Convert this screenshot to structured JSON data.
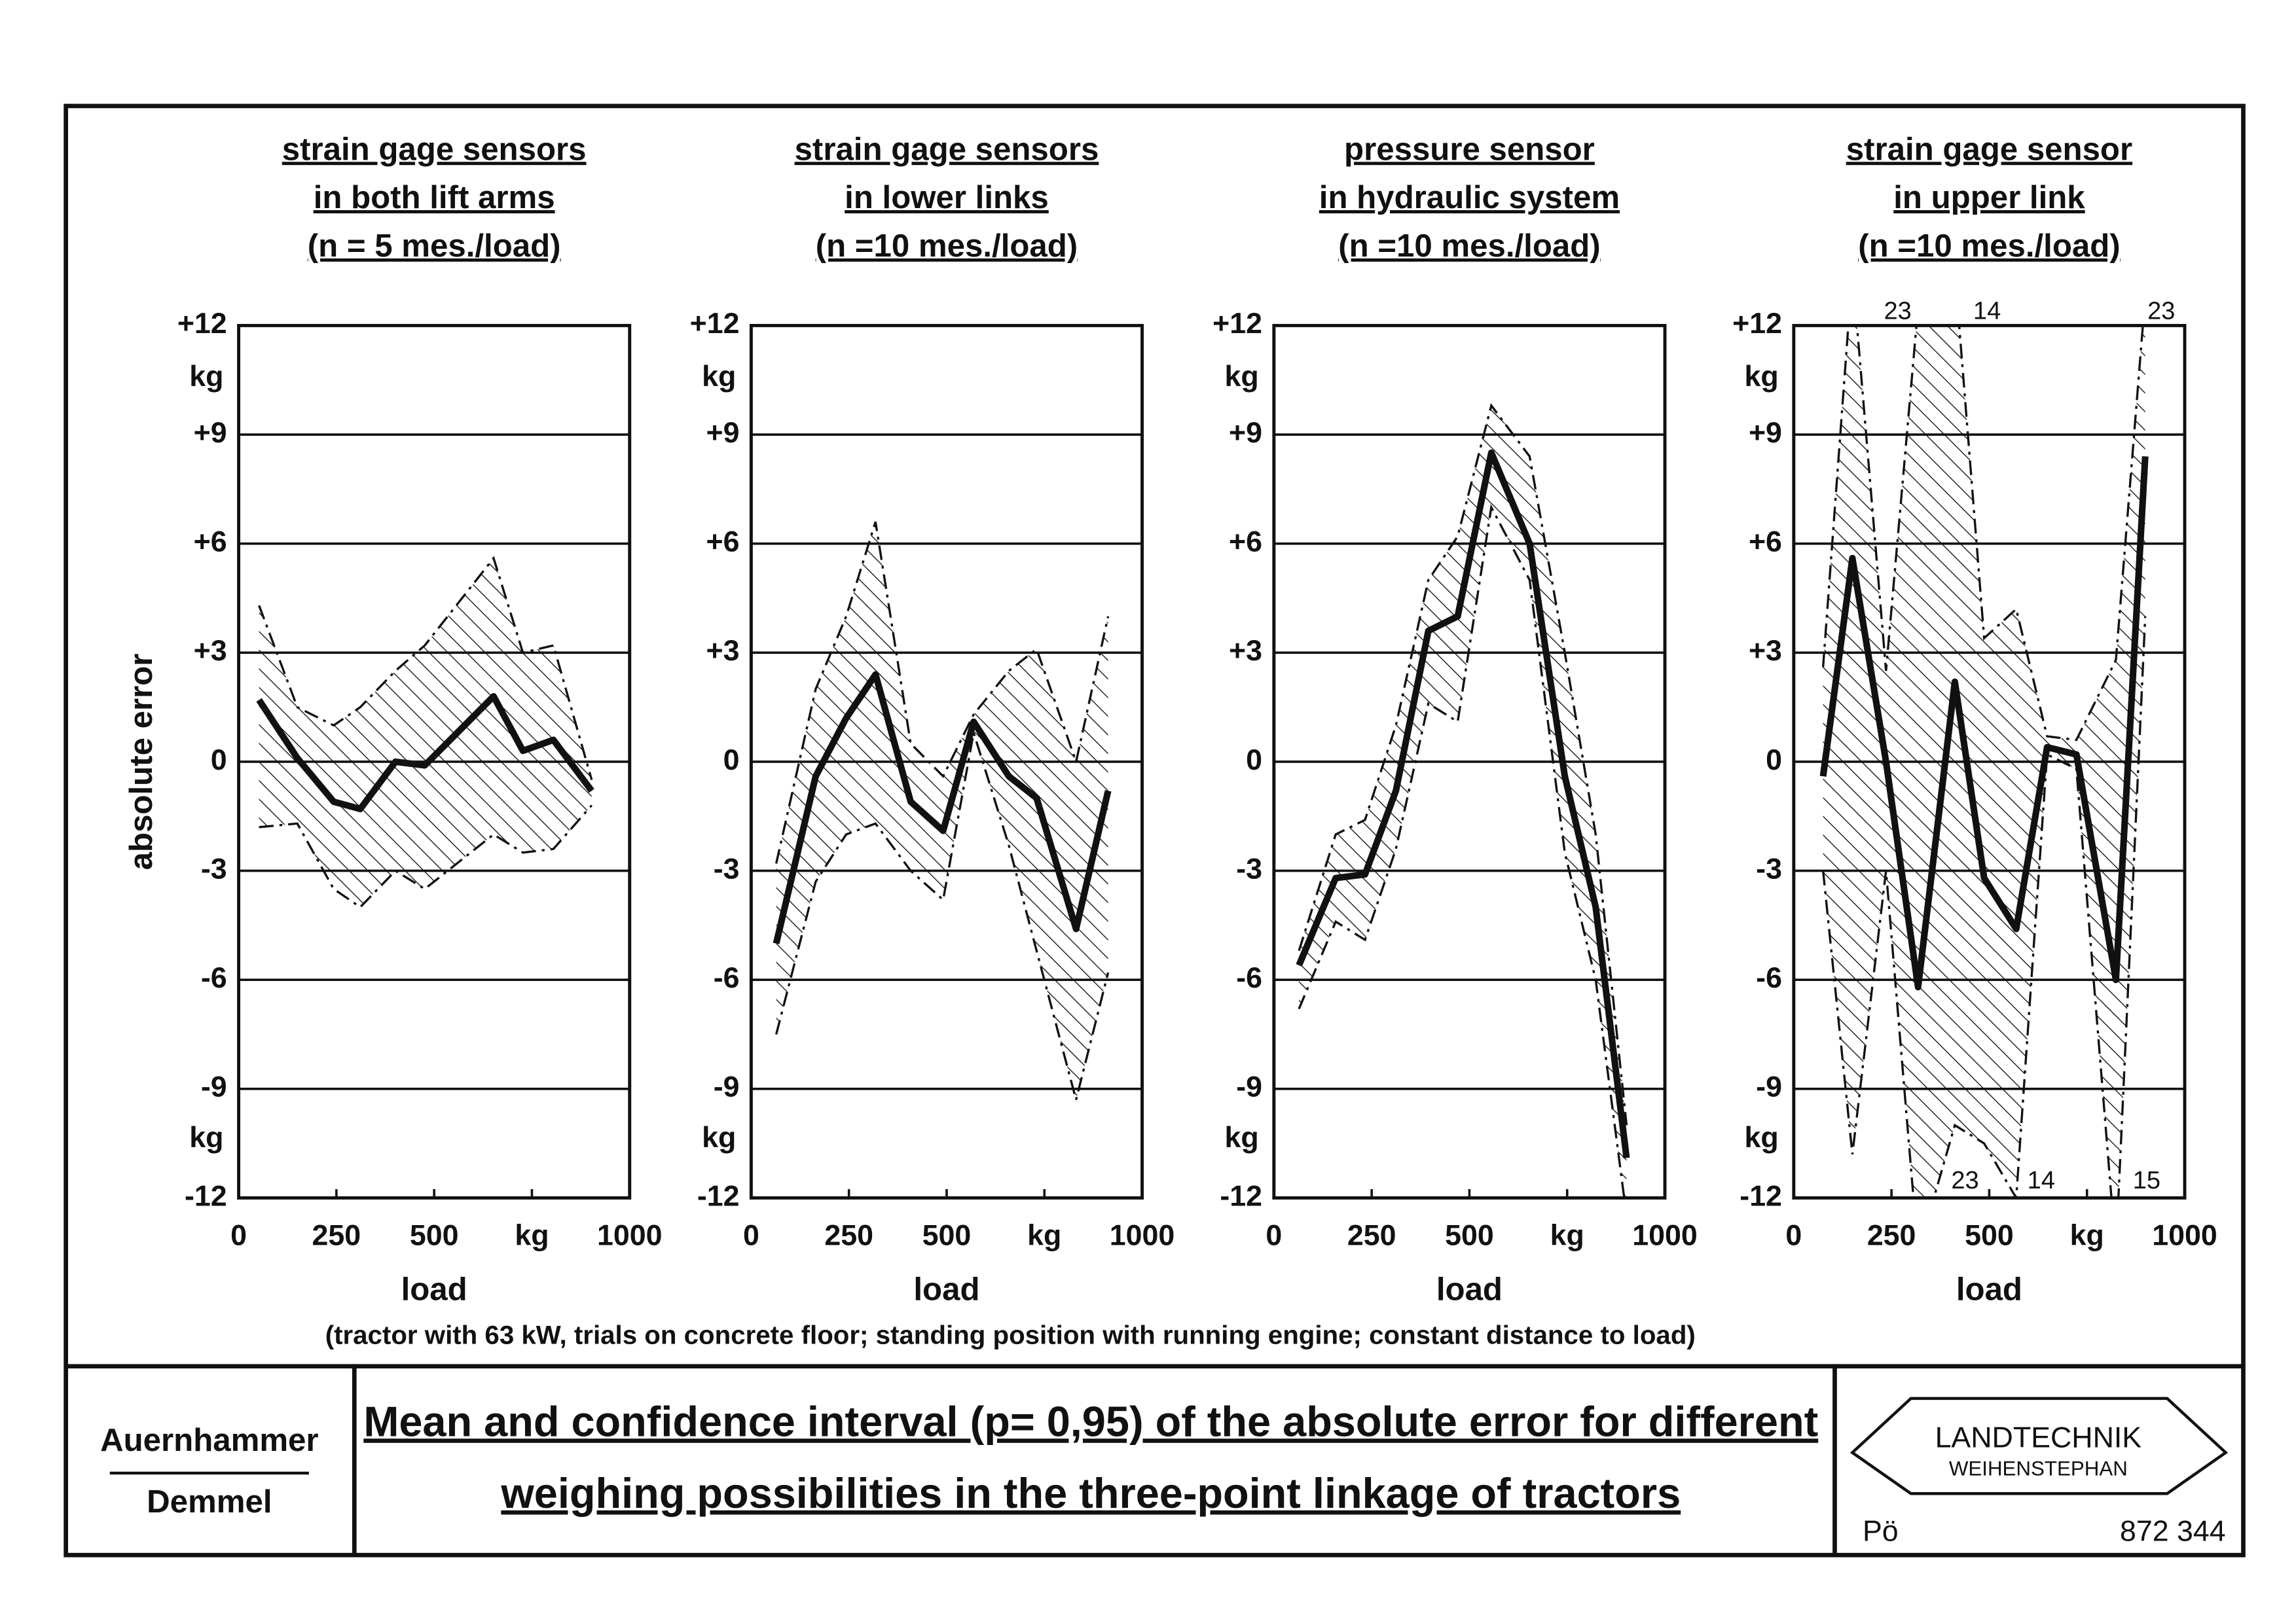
{
  "chart_data": [
    {
      "type": "line",
      "title": [
        "strain gage sensors",
        "in both lift arms",
        "(n = 5 mes./load)"
      ],
      "y_label": "absolute error",
      "y_unit": "kg",
      "x_label": "load",
      "xlim": [
        0,
        1000
      ],
      "xticks": [
        0,
        250,
        500,
        {
          "value": 750,
          "label": "kg"
        },
        1000
      ],
      "ylim": [
        -12,
        12
      ],
      "yticks": [
        {
          "value": 12,
          "label": "+12"
        },
        {
          "value": 9,
          "label": "+9"
        },
        {
          "value": 6,
          "label": "+6"
        },
        {
          "value": 3,
          "label": "+3"
        },
        0,
        -3,
        -6,
        -9,
        -12
      ],
      "x": [
        52,
        150,
        243,
        311,
        401,
        476,
        652,
        727,
        805,
        903
      ],
      "values": [
        1.7,
        0.1,
        -1.1,
        -1.3,
        0.0,
        -0.1,
        1.8,
        0.3,
        0.6,
        -0.8
      ],
      "band_upper": [
        4.3,
        1.5,
        1.0,
        1.5,
        2.5,
        3.2,
        5.6,
        3.0,
        3.2,
        -0.5
      ],
      "band_lower": [
        -1.8,
        -1.7,
        -3.5,
        -4.0,
        -3.0,
        -3.5,
        -2.0,
        -2.5,
        -2.4,
        -1.2
      ]
    },
    {
      "type": "line",
      "title": [
        "strain gage sensors",
        "in lower links",
        "(n =10 mes./load)"
      ],
      "y_unit": "kg",
      "x_label": "load",
      "xlim": [
        0,
        1000
      ],
      "xticks": [
        0,
        250,
        500,
        {
          "value": 750,
          "label": "kg"
        },
        1000
      ],
      "ylim": [
        -12,
        12
      ],
      "yticks": [
        {
          "value": 12,
          "label": "+12"
        },
        {
          "value": 9,
          "label": "+9"
        },
        {
          "value": 6,
          "label": "+6"
        },
        {
          "value": 3,
          "label": "+3"
        },
        0,
        -3,
        -6,
        -9,
        -12
      ],
      "x": [
        64,
        165,
        243,
        318,
        408,
        491,
        569,
        659,
        730,
        831,
        913
      ],
      "values": [
        -5.0,
        -0.4,
        1.2,
        2.4,
        -1.1,
        -1.9,
        1.1,
        -0.4,
        -1.0,
        -4.6,
        -0.8
      ],
      "band_upper": [
        -2.8,
        2.0,
        4.0,
        6.6,
        0.5,
        -0.4,
        1.3,
        2.5,
        3.1,
        0.0,
        4.0
      ],
      "band_lower": [
        -7.5,
        -3.3,
        -2.0,
        -1.7,
        -3.0,
        -3.8,
        0.8,
        -2.3,
        -5.2,
        -9.3,
        -5.8
      ]
    },
    {
      "type": "line",
      "title": [
        "pressure sensor",
        "in hydraulic system",
        "(n =10 mes./load)"
      ],
      "y_unit": "kg",
      "x_label": "load",
      "xlim": [
        0,
        1000
      ],
      "xticks": [
        0,
        250,
        500,
        {
          "value": 750,
          "label": "kg"
        },
        1000
      ],
      "ylim": [
        -12,
        12
      ],
      "yticks": [
        {
          "value": 12,
          "label": "+12"
        },
        {
          "value": 9,
          "label": "+9"
        },
        {
          "value": 6,
          "label": "+6"
        },
        {
          "value": 3,
          "label": "+3"
        },
        0,
        -3,
        -6,
        -9,
        -12
      ],
      "x": [
        64,
        158,
        233,
        312,
        395,
        470,
        556,
        654,
        744,
        823,
        902
      ],
      "values": [
        -5.6,
        -3.2,
        -3.1,
        -0.8,
        3.6,
        4.0,
        8.5,
        6.0,
        -0.4,
        -4.0,
        -10.9
      ],
      "band_upper": [
        -5.2,
        -2.0,
        -1.6,
        1.0,
        5.0,
        6.2,
        9.8,
        8.4,
        3.0,
        -2.0,
        -10.0
      ],
      "band_lower": [
        -6.8,
        -4.4,
        -4.9,
        -2.4,
        1.6,
        1.1,
        7.0,
        5.0,
        -2.5,
        -6.0,
        -12.5
      ]
    },
    {
      "type": "line",
      "title": [
        "strain gage sensor",
        "in upper link",
        "(n =10 mes./load)"
      ],
      "y_unit": "kg",
      "x_label": "load",
      "xlim": [
        0,
        1000
      ],
      "xticks": [
        0,
        250,
        500,
        {
          "value": 750,
          "label": "kg"
        },
        1000
      ],
      "ylim": [
        -12,
        12
      ],
      "yticks": [
        {
          "value": 12,
          "label": "+12"
        },
        {
          "value": 9,
          "label": "+9"
        },
        {
          "value": 6,
          "label": "+6"
        },
        {
          "value": 3,
          "label": "+3"
        },
        0,
        -3,
        -6,
        -9,
        -12
      ],
      "x": [
        75,
        150,
        236,
        318,
        412,
        487,
        569,
        648,
        723,
        824,
        899
      ],
      "values": [
        -0.4,
        5.6,
        0.0,
        -6.2,
        2.2,
        -3.2,
        -4.6,
        0.4,
        0.2,
        -6.0,
        8.4
      ],
      "band_upper": [
        2.6,
        13.5,
        2.5,
        12.5,
        13.5,
        3.4,
        4.2,
        0.7,
        0.6,
        2.8,
        12.8
      ],
      "band_lower": [
        -3.0,
        -10.8,
        -3.0,
        -13.5,
        -10.0,
        -10.5,
        -12.0,
        0.2,
        -0.2,
        -13.5,
        4.0
      ],
      "annotations_top": [
        "23",
        "14",
        "23"
      ],
      "annotations_bottom": [
        "23",
        "14",
        "15"
      ]
    }
  ],
  "footnote": "(tractor with 63 kW, trials on concrete floor; standing position with running engine; constant distance to load)",
  "footer": {
    "authors": [
      "Auernhammer",
      "Demmel"
    ],
    "title": [
      "Mean and confidence interval (p= 0,95) of the absolute error for different",
      "weighing possibilities in the three-point linkage of tractors"
    ],
    "logo": [
      "LANDTECHNIK",
      "WEIHENSTEPHAN"
    ],
    "initials": "Pö",
    "number": "872 344"
  }
}
